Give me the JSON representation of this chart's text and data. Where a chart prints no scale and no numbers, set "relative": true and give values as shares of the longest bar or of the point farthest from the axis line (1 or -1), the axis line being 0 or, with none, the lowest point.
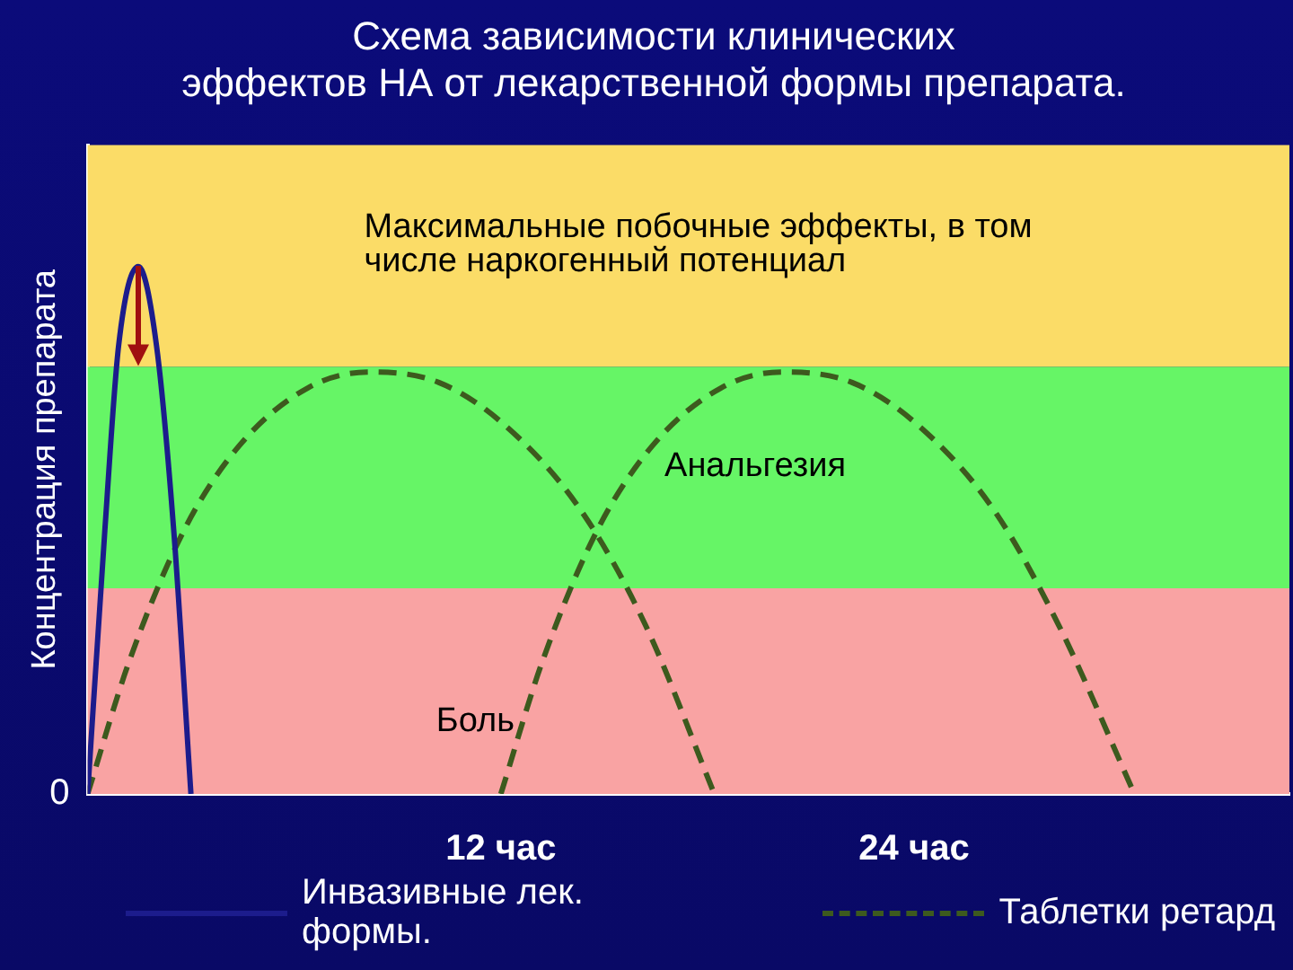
{
  "chart_data": {
    "type": "line",
    "title": "Схема зависимости клинических эффектов НА от лекарственной формы препарата.",
    "ylabel": "Концентрация препарата",
    "relative": true,
    "xlim": [
      0,
      34.9
    ],
    "xticks": [
      {
        "value": 12,
        "label": "12 час"
      },
      {
        "value": 24,
        "label": "24 час"
      }
    ],
    "series": [
      {
        "name": "Инвазивные лек. формы.",
        "color": "#1c1c8c",
        "line_style": "solid",
        "x": [
          0,
          0.5,
          0.9,
          1.47,
          2.0,
          2.5,
          3.0
        ],
        "values": [
          0,
          0.5,
          0.85,
          1,
          0.85,
          0.5,
          0
        ]
      },
      {
        "name": "Таблетки ретард",
        "color": "#3d5a1e",
        "line_style": "dashed",
        "x": [
          0,
          1.2,
          2.8,
          4.4,
          6.4,
          8.2,
          10.2,
          12.1,
          14.3,
          16.2,
          18.2
        ],
        "values": [
          0,
          0.25,
          0.5,
          0.66,
          0.77,
          0.8,
          0.78,
          0.7,
          0.54,
          0.32,
          0
        ]
      },
      {
        "color": "#3d5a1e",
        "line_style": "dashed",
        "x": [
          12,
          13.2,
          14.8,
          16.4,
          18.4,
          20.2,
          22.2,
          24.1,
          26.3,
          28.2,
          30.4
        ],
        "values": [
          0,
          0.25,
          0.5,
          0.66,
          0.77,
          0.8,
          0.78,
          0.7,
          0.54,
          0.32,
          0
        ]
      }
    ],
    "bands": [
      {
        "axis": "y",
        "from": 0,
        "to": 0.39,
        "label": "Боль",
        "color": "#f9a3a3"
      },
      {
        "axis": "y",
        "from": 0.39,
        "to": 0.81,
        "label": "Анальгезия",
        "color": "#66f566"
      },
      {
        "axis": "y",
        "from": 0.81,
        "to": 1.23,
        "label": "Максимальные побочные эффекты, в том числе наркогенный потенциал",
        "color": "#fbdc67"
      }
    ],
    "annotations": [
      "0"
    ],
    "grid": false,
    "legend": "bottom"
  }
}
